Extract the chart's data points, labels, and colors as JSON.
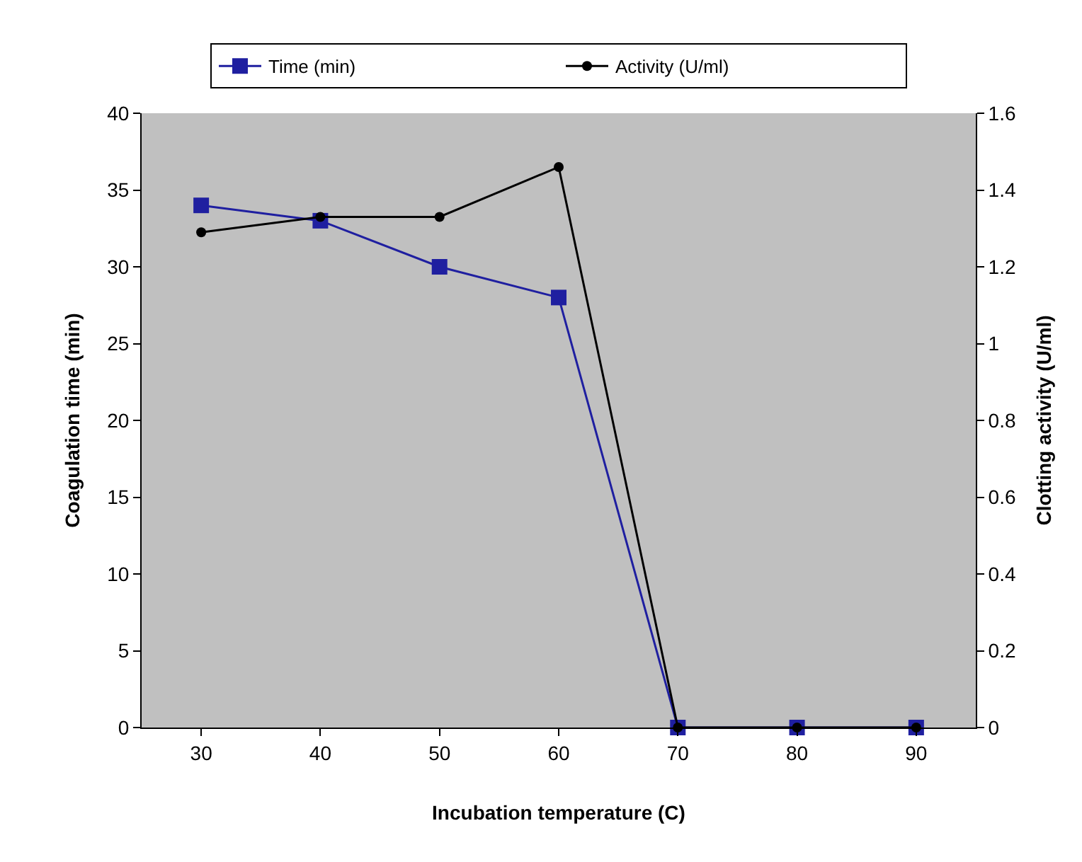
{
  "chart_data": {
    "type": "line",
    "xlabel": "Incubation temperature (C)",
    "ylabel": "Coagulation time (min)",
    "y2label": "Clotting activity (U/ml)",
    "categories": [
      "30",
      "40",
      "50",
      "60",
      "70",
      "80",
      "90"
    ],
    "series": [
      {
        "name": "Time (min)",
        "color": "#1f1fa0",
        "marker": "square",
        "values": [
          34,
          33,
          30,
          28,
          0,
          0,
          0
        ]
      },
      {
        "name": "Activity (U/ml)",
        "color": "#000000",
        "marker": "circle",
        "axis": "y2",
        "values": [
          1.29,
          1.33,
          1.33,
          1.46,
          0,
          0,
          0
        ]
      }
    ],
    "ylim": [
      0,
      40
    ],
    "yticks": [
      0,
      5,
      10,
      15,
      20,
      25,
      30,
      35,
      40
    ],
    "y2lim": [
      0,
      1.6
    ],
    "y2ticks": [
      0,
      0.2,
      0.4,
      0.6,
      0.8,
      1,
      1.2,
      1.4,
      1.6
    ],
    "legend": "top",
    "line_style": "solid"
  }
}
